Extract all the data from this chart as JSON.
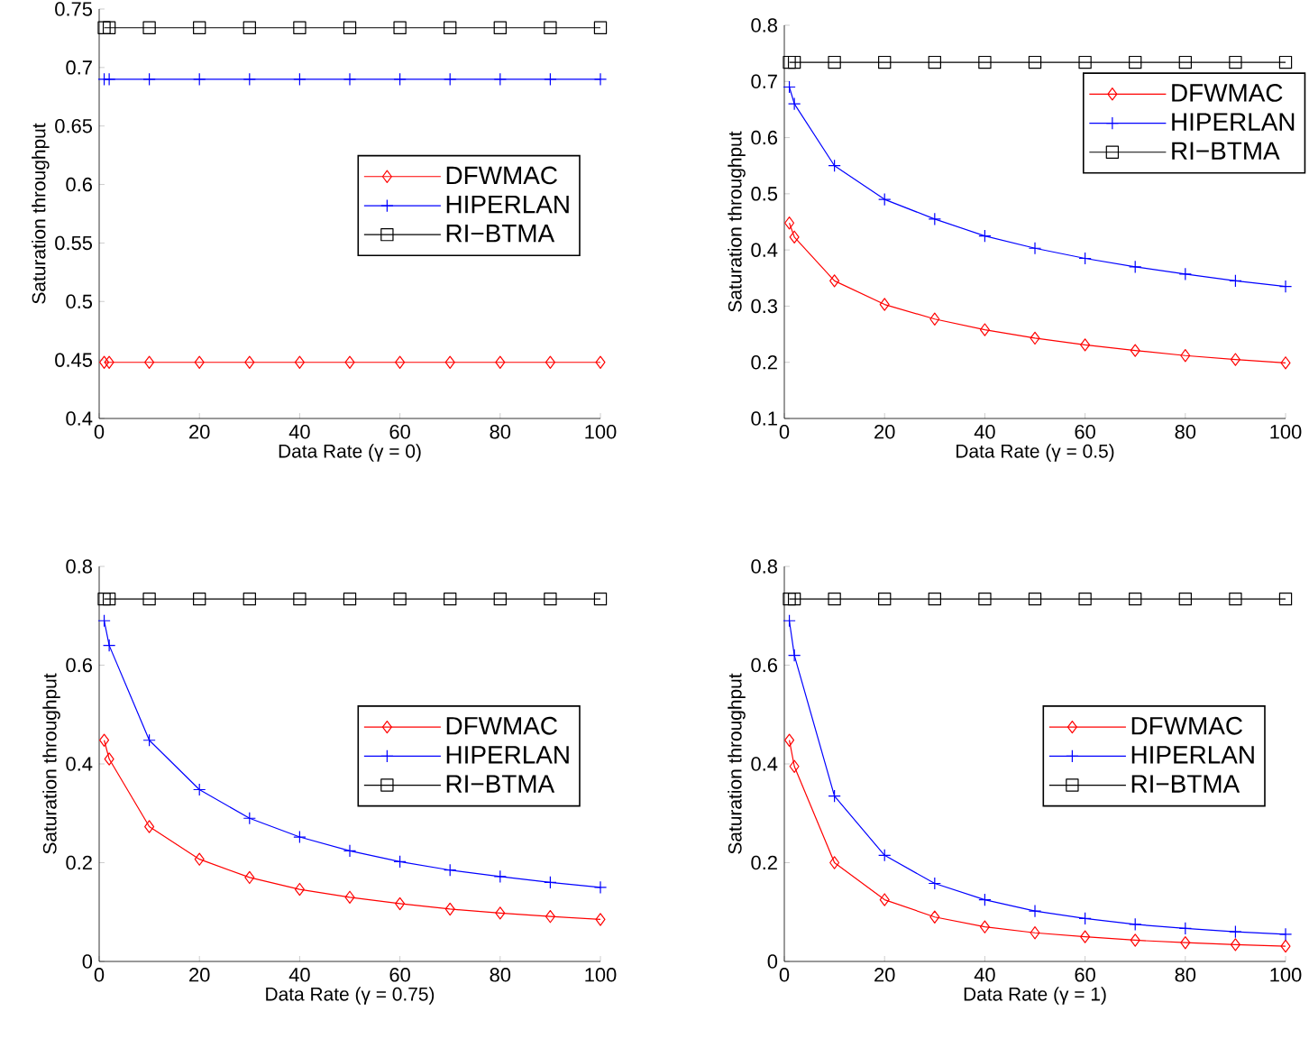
{
  "chart_data": [
    {
      "type": "line",
      "x": [
        1,
        2,
        10,
        20,
        30,
        40,
        50,
        60,
        70,
        80,
        90,
        100
      ],
      "xlabel": "Data Rate (γ = 0)",
      "ylabel": "Saturation throughput",
      "xlim": [
        0,
        100
      ],
      "xticks": [
        0,
        20,
        40,
        60,
        80,
        100
      ],
      "ylim": [
        0.4,
        0.75
      ],
      "yticks": [
        0.4,
        0.45,
        0.5,
        0.55,
        0.6,
        0.65,
        0.7,
        0.75
      ],
      "legend": "right",
      "grid": false,
      "series": [
        {
          "name": "DFWMAC",
          "color": "#ff0000",
          "marker": "diamond",
          "values": [
            0.448,
            0.448,
            0.448,
            0.448,
            0.448,
            0.448,
            0.448,
            0.448,
            0.448,
            0.448,
            0.448,
            0.448
          ]
        },
        {
          "name": "HIPERLAN",
          "color": "#0000ff",
          "marker": "cross",
          "values": [
            0.69,
            0.69,
            0.69,
            0.69,
            0.69,
            0.69,
            0.69,
            0.69,
            0.69,
            0.69,
            0.69,
            0.69
          ]
        },
        {
          "name": "RI−BTMA",
          "color": "#000000",
          "marker": "square",
          "values": [
            0.734,
            0.734,
            0.734,
            0.734,
            0.734,
            0.734,
            0.734,
            0.734,
            0.734,
            0.734,
            0.734,
            0.734
          ]
        }
      ]
    },
    {
      "type": "line",
      "x": [
        1,
        2,
        10,
        20,
        30,
        40,
        50,
        60,
        70,
        80,
        90,
        100
      ],
      "xlabel": "Data Rate (γ = 0.5)",
      "ylabel": "Saturation throughput",
      "xlim": [
        0,
        100
      ],
      "xticks": [
        0,
        20,
        40,
        60,
        80,
        100
      ],
      "ylim": [
        0.1,
        0.8
      ],
      "yticks": [
        0.1,
        0.2,
        0.3,
        0.4,
        0.5,
        0.6,
        0.7,
        0.8
      ],
      "legend": "top right",
      "grid": false,
      "series": [
        {
          "name": "DFWMAC",
          "color": "#ff0000",
          "marker": "diamond",
          "values": [
            0.448,
            0.423,
            0.345,
            0.303,
            0.277,
            0.258,
            0.243,
            0.231,
            0.221,
            0.212,
            0.205,
            0.199
          ]
        },
        {
          "name": "HIPERLAN",
          "color": "#0000ff",
          "marker": "cross",
          "values": [
            0.69,
            0.66,
            0.55,
            0.49,
            0.455,
            0.425,
            0.403,
            0.385,
            0.37,
            0.357,
            0.345,
            0.335
          ]
        },
        {
          "name": "RI−BTMA",
          "color": "#000000",
          "marker": "square",
          "values": [
            0.734,
            0.734,
            0.734,
            0.734,
            0.734,
            0.734,
            0.734,
            0.734,
            0.734,
            0.734,
            0.734,
            0.734
          ]
        }
      ]
    },
    {
      "type": "line",
      "x": [
        1,
        2,
        10,
        20,
        30,
        40,
        50,
        60,
        70,
        80,
        90,
        100
      ],
      "xlabel": "Data Rate (γ = 0.75)",
      "ylabel": "Saturation throughput",
      "xlim": [
        0,
        100
      ],
      "xticks": [
        0,
        20,
        40,
        60,
        80,
        100
      ],
      "ylim": [
        0,
        0.8
      ],
      "yticks": [
        0,
        0.2,
        0.4,
        0.6,
        0.8
      ],
      "legend": "right",
      "grid": false,
      "series": [
        {
          "name": "DFWMAC",
          "color": "#ff0000",
          "marker": "diamond",
          "values": [
            0.448,
            0.41,
            0.273,
            0.207,
            0.17,
            0.146,
            0.13,
            0.117,
            0.106,
            0.098,
            0.091,
            0.085
          ]
        },
        {
          "name": "HIPERLAN",
          "color": "#0000ff",
          "marker": "cross",
          "values": [
            0.69,
            0.64,
            0.448,
            0.348,
            0.29,
            0.252,
            0.224,
            0.202,
            0.185,
            0.172,
            0.16,
            0.15
          ]
        },
        {
          "name": "RI−BTMA",
          "color": "#000000",
          "marker": "square",
          "values": [
            0.734,
            0.734,
            0.734,
            0.734,
            0.734,
            0.734,
            0.734,
            0.734,
            0.734,
            0.734,
            0.734,
            0.734
          ]
        }
      ]
    },
    {
      "type": "line",
      "x": [
        1,
        2,
        10,
        20,
        30,
        40,
        50,
        60,
        70,
        80,
        90,
        100
      ],
      "xlabel": "Data Rate (γ = 1)",
      "ylabel": "Saturation throughput",
      "xlim": [
        0,
        100
      ],
      "xticks": [
        0,
        20,
        40,
        60,
        80,
        100
      ],
      "ylim": [
        0,
        0.8
      ],
      "yticks": [
        0,
        0.2,
        0.4,
        0.6,
        0.8
      ],
      "legend": "right",
      "grid": false,
      "series": [
        {
          "name": "DFWMAC",
          "color": "#ff0000",
          "marker": "diamond",
          "values": [
            0.448,
            0.395,
            0.2,
            0.125,
            0.09,
            0.07,
            0.058,
            0.05,
            0.043,
            0.038,
            0.034,
            0.031
          ]
        },
        {
          "name": "HIPERLAN",
          "color": "#0000ff",
          "marker": "cross",
          "values": [
            0.69,
            0.62,
            0.335,
            0.215,
            0.158,
            0.125,
            0.102,
            0.087,
            0.075,
            0.067,
            0.06,
            0.055
          ]
        },
        {
          "name": "RI−BTMA",
          "color": "#000000",
          "marker": "square",
          "values": [
            0.734,
            0.734,
            0.734,
            0.734,
            0.734,
            0.734,
            0.734,
            0.734,
            0.734,
            0.734,
            0.734,
            0.734
          ]
        }
      ]
    }
  ]
}
